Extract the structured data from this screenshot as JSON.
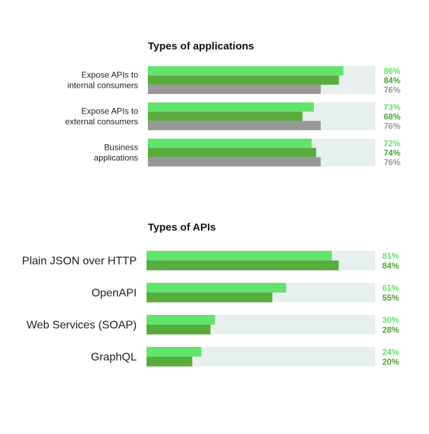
{
  "colors": {
    "light_green": "#62e46c",
    "dark_green": "#59ab3e",
    "gray": "#989898",
    "track": "#e8f0ed",
    "label_light": "#62e46c",
    "label_dark": "#4ea534",
    "label_gray": "#9b9b9b"
  },
  "chart_data": [
    {
      "type": "bar",
      "orientation": "horizontal",
      "title": "Types of applications",
      "categories": [
        "Expose APIs to\ninternal consumers",
        "Expose APIs to\nexternal consumers",
        "Business\napplications"
      ],
      "series": [
        {
          "values": [
            86,
            73,
            72
          ],
          "labels": [
            "86%",
            "73%",
            "72%"
          ]
        },
        {
          "values": [
            84,
            68,
            74
          ],
          "labels": [
            "84%",
            "68%",
            "74%"
          ]
        },
        {
          "values": [
            76,
            76,
            76
          ],
          "labels": [
            "76%",
            "76%",
            "76%"
          ]
        }
      ],
      "xlim": [
        0,
        100
      ],
      "legend": "none",
      "grid": false
    },
    {
      "type": "bar",
      "orientation": "horizontal",
      "title": "Types of APIs",
      "categories": [
        "Plain JSON over HTTP",
        "OpenAPI",
        "Web Services (SOAP)",
        "GraphQL"
      ],
      "series": [
        {
          "values": [
            81,
            61,
            30,
            24
          ],
          "labels": [
            "81%",
            "61%",
            "30%",
            "24%"
          ]
        },
        {
          "values": [
            84,
            55,
            28,
            20
          ],
          "labels": [
            "84%",
            "55%",
            "28%",
            "20%"
          ]
        }
      ],
      "xlim": [
        0,
        100
      ],
      "legend": "none",
      "grid": false
    }
  ]
}
